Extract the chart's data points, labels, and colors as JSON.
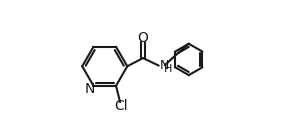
{
  "background_color": "#ffffff",
  "line_color": "#1a1a1a",
  "line_width": 1.5,
  "font_size": 10,
  "figsize": [
    2.86,
    1.38
  ],
  "dpi": 100,
  "xlim": [
    0.0,
    1.0
  ],
  "ylim": [
    0.0,
    1.0
  ]
}
